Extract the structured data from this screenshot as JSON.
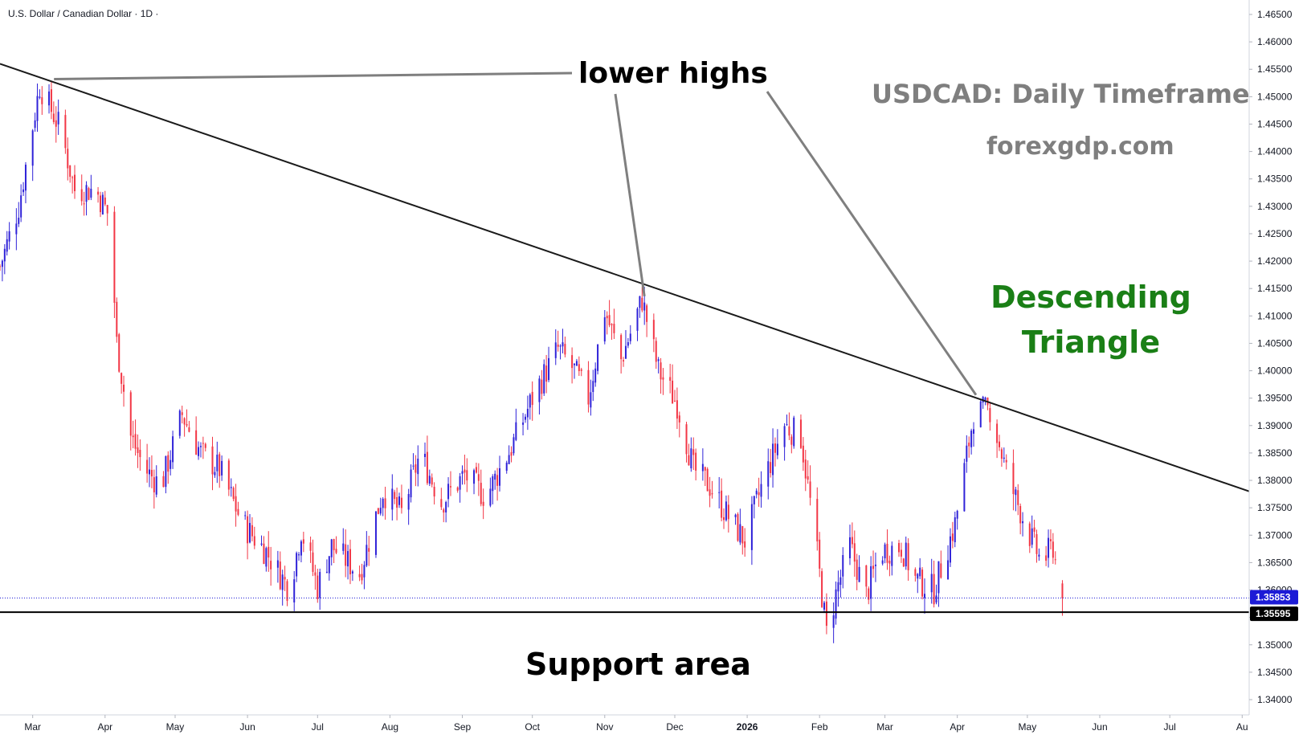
{
  "chart_data": {
    "type": "candlestick",
    "symbol_title": "U.S. Dollar / Canadian Dollar · 1D ·",
    "price_axis": {
      "min": 1.34,
      "max": 1.465,
      "ticks": [
        "1.46500",
        "1.46000",
        "1.45500",
        "1.45000",
        "1.44500",
        "1.44000",
        "1.43500",
        "1.43000",
        "1.42500",
        "1.42000",
        "1.41500",
        "1.41000",
        "1.40500",
        "1.40000",
        "1.39500",
        "1.39000",
        "1.38500",
        "1.38000",
        "1.37500",
        "1.37000",
        "1.36500",
        "1.36000",
        "1.35500",
        "1.35000",
        "1.34500",
        "1.34000"
      ]
    },
    "time_axis": {
      "labels": [
        {
          "label": "Mar",
          "day": 0
        },
        {
          "label": "Apr",
          "day": 31
        },
        {
          "label": "May",
          "day": 61
        },
        {
          "label": "Jun",
          "day": 92
        },
        {
          "label": "Jul",
          "day": 122
        },
        {
          "label": "Aug",
          "day": 153
        },
        {
          "label": "Sep",
          "day": 184
        },
        {
          "label": "Oct",
          "day": 214
        },
        {
          "label": "Nov",
          "day": 245
        },
        {
          "label": "Dec",
          "day": 275
        },
        {
          "label": "2026",
          "day": 306
        },
        {
          "label": "Feb",
          "day": 337
        },
        {
          "label": "Mar",
          "day": 365
        },
        {
          "label": "Apr",
          "day": 396
        },
        {
          "label": "May",
          "day": 426
        },
        {
          "label": "Jun",
          "day": 457
        },
        {
          "label": "Jul",
          "day": 487
        },
        {
          "label": "Au",
          "day": 518
        }
      ],
      "day_min": -14,
      "day_max": 521
    },
    "price_path": [
      [
        -14,
        1.419
      ],
      [
        -6,
        1.43
      ],
      [
        3,
        1.452
      ],
      [
        12,
        1.444
      ],
      [
        18,
        1.433
      ],
      [
        27,
        1.433
      ],
      [
        33,
        1.428
      ],
      [
        36,
        1.405
      ],
      [
        42,
        1.388
      ],
      [
        48,
        1.382
      ],
      [
        55,
        1.379
      ],
      [
        64,
        1.392
      ],
      [
        72,
        1.385
      ],
      [
        80,
        1.382
      ],
      [
        90,
        1.372
      ],
      [
        100,
        1.367
      ],
      [
        110,
        1.36
      ],
      [
        115,
        1.371
      ],
      [
        122,
        1.3605
      ],
      [
        128,
        1.368
      ],
      [
        140,
        1.363
      ],
      [
        150,
        1.378
      ],
      [
        158,
        1.374
      ],
      [
        166,
        1.385
      ],
      [
        175,
        1.376
      ],
      [
        185,
        1.381
      ],
      [
        194,
        1.377
      ],
      [
        205,
        1.386
      ],
      [
        215,
        1.396
      ],
      [
        225,
        1.404
      ],
      [
        232,
        1.4
      ],
      [
        238,
        1.395
      ],
      [
        245,
        1.411
      ],
      [
        252,
        1.402
      ],
      [
        261,
        1.413
      ],
      [
        268,
        1.4
      ],
      [
        276,
        1.394
      ],
      [
        283,
        1.382
      ],
      [
        290,
        1.379
      ],
      [
        297,
        1.374
      ],
      [
        305,
        1.369
      ],
      [
        313,
        1.38
      ],
      [
        322,
        1.39
      ],
      [
        329,
        1.388
      ],
      [
        335,
        1.37
      ],
      [
        340,
        1.352
      ],
      [
        345,
        1.361
      ],
      [
        350,
        1.368
      ],
      [
        357,
        1.359
      ],
      [
        363,
        1.367
      ],
      [
        372,
        1.368
      ],
      [
        378,
        1.362
      ],
      [
        386,
        1.36
      ],
      [
        395,
        1.372
      ],
      [
        403,
        1.392
      ],
      [
        410,
        1.393
      ],
      [
        418,
        1.38
      ],
      [
        427,
        1.37
      ],
      [
        432,
        1.365
      ],
      [
        437,
        1.368
      ],
      [
        440,
        1.36
      ],
      [
        441,
        1.35853
      ]
    ],
    "current_price": {
      "value": 1.35853,
      "label": "1.35853",
      "color": "#1c1bd6"
    },
    "support": {
      "value": 1.35595,
      "label": "1.35595",
      "color": "#000000"
    },
    "trendline": {
      "start": {
        "day": -14,
        "price": 1.456
      },
      "end": {
        "day": 521,
        "price": 1.378
      },
      "color": "#1a1a1a"
    },
    "lower_highs": [
      {
        "day": 5,
        "price": 1.4535
      },
      {
        "day": 262,
        "price": 1.413
      },
      {
        "day": 404,
        "price": 1.395
      }
    ],
    "candle_colors": {
      "up": "#2f22d8",
      "down": "#f23645"
    }
  },
  "annotations": {
    "lower_highs": "lower highs",
    "title": "USDCAD: Daily Timeframe",
    "website": "forexgdp.com",
    "pattern_line1": "Descending",
    "pattern_line2": "Triangle",
    "support": "Support area"
  },
  "colors": {
    "pattern_text": "#1a7f16",
    "title_text": "#7f7f7f",
    "annotation_text": "#000000",
    "pointer_line": "#7f7f7f"
  }
}
